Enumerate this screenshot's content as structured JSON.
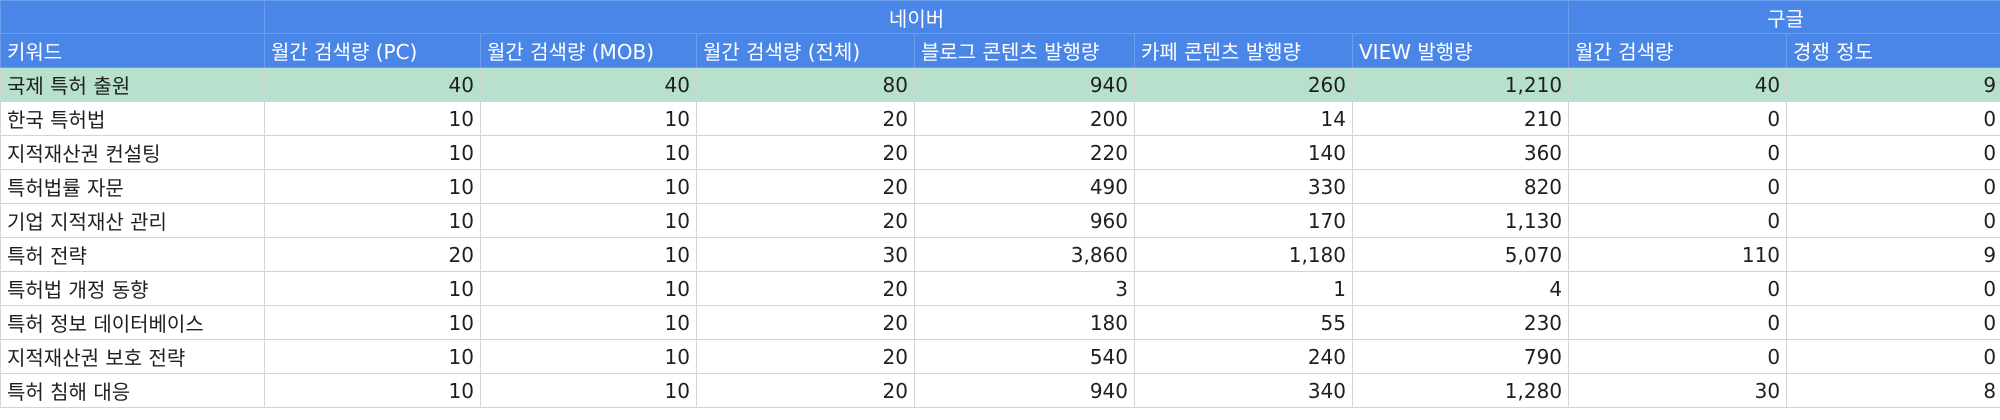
{
  "groups": {
    "naver": "네이버",
    "google": "구글"
  },
  "headers": [
    "키워드",
    "월간 검색량 (PC)",
    "월간 검색량 (MOB)",
    "월간 검색량 (전체)",
    "블로그 콘텐츠 발행량",
    "카페 콘텐츠 발행량",
    "VIEW 발행량",
    "월간 검색량",
    "경쟁 정도"
  ],
  "rows": [
    [
      "국제 특허 출원",
      "40",
      "40",
      "80",
      "940",
      "260",
      "1,210",
      "40",
      "9"
    ],
    [
      "한국 특허법",
      "10",
      "10",
      "20",
      "200",
      "14",
      "210",
      "0",
      "0"
    ],
    [
      "지적재산권 컨설팅",
      "10",
      "10",
      "20",
      "220",
      "140",
      "360",
      "0",
      "0"
    ],
    [
      "특허법률 자문",
      "10",
      "10",
      "20",
      "490",
      "330",
      "820",
      "0",
      "0"
    ],
    [
      "기업 지적재산 관리",
      "10",
      "10",
      "20",
      "960",
      "170",
      "1,130",
      "0",
      "0"
    ],
    [
      "특허 전략",
      "20",
      "10",
      "30",
      "3,860",
      "1,180",
      "5,070",
      "110",
      "9"
    ],
    [
      "특허법 개정 동향",
      "10",
      "10",
      "20",
      "3",
      "1",
      "4",
      "0",
      "0"
    ],
    [
      "특허 정보 데이터베이스",
      "10",
      "10",
      "20",
      "180",
      "55",
      "230",
      "0",
      "0"
    ],
    [
      "지적재산권 보호 전략",
      "10",
      "10",
      "20",
      "540",
      "240",
      "790",
      "0",
      "0"
    ],
    [
      "특허 침해 대응",
      "10",
      "10",
      "20",
      "940",
      "340",
      "1,280",
      "30",
      "8"
    ]
  ],
  "colors": {
    "header_blue": "#4a86e8",
    "highlight_green": "#b7e1cd"
  }
}
